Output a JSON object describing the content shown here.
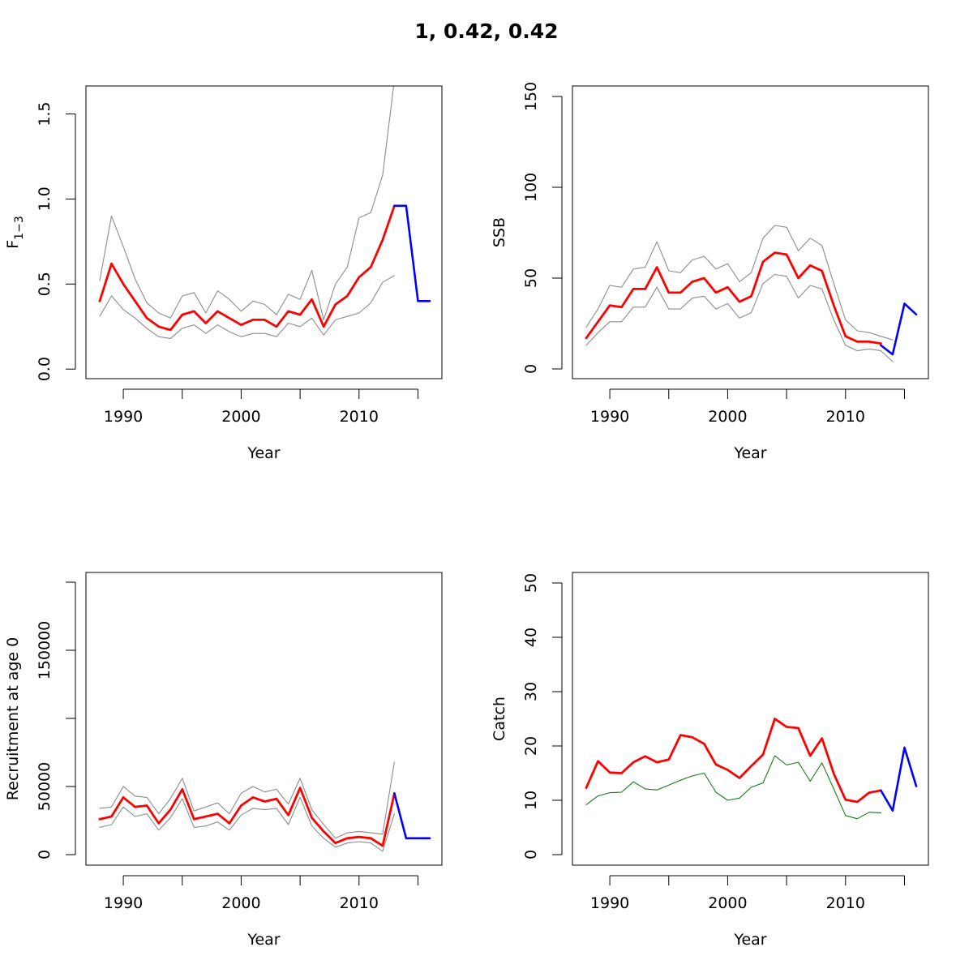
{
  "title": "1, 0.42, 0.42",
  "colors": {
    "estimate": "#ff0000",
    "projection": "#0000ff",
    "ci": "#8c8c8c",
    "observed": "#1a7a1a"
  },
  "chart_data": [
    {
      "type": "line",
      "panel": "top-left",
      "xlabel": "Year",
      "ylabel": "F",
      "ylabel_sub": "1−3",
      "xlim": [
        1988,
        2016
      ],
      "ylim": [
        0,
        1.6
      ],
      "xticks": [
        1990,
        1995,
        2000,
        2005,
        2010,
        2015
      ],
      "xtick_labels": [
        "1990",
        "",
        "2000",
        "",
        "2010",
        ""
      ],
      "yticks": [
        0,
        0.5,
        1.0,
        1.5
      ],
      "ytick_labels": [
        "0.0",
        "0.5",
        "1.0",
        "1.5"
      ],
      "series": [
        {
          "role": "upper",
          "x": [
            1988,
            1989,
            1990,
            1991,
            1992,
            1993,
            1994,
            1995,
            1996,
            1997,
            1998,
            1999,
            2000,
            2001,
            2002,
            2003,
            2004,
            2005,
            2006,
            2007,
            2008,
            2009,
            2010,
            2011,
            2012,
            2013
          ],
          "values": [
            0.52,
            0.9,
            0.72,
            0.53,
            0.39,
            0.33,
            0.3,
            0.43,
            0.45,
            0.33,
            0.46,
            0.41,
            0.34,
            0.4,
            0.38,
            0.32,
            0.44,
            0.41,
            0.58,
            0.29,
            0.5,
            0.6,
            0.89,
            0.92,
            1.14,
            1.7
          ]
        },
        {
          "role": "estimate",
          "x": [
            1988,
            1989,
            1990,
            1991,
            1992,
            1993,
            1994,
            1995,
            1996,
            1997,
            1998,
            1999,
            2000,
            2001,
            2002,
            2003,
            2004,
            2005,
            2006,
            2007,
            2008,
            2009,
            2010,
            2011,
            2012,
            2013
          ],
          "values": [
            0.4,
            0.62,
            0.5,
            0.4,
            0.3,
            0.25,
            0.23,
            0.32,
            0.34,
            0.27,
            0.34,
            0.3,
            0.26,
            0.29,
            0.29,
            0.25,
            0.34,
            0.32,
            0.41,
            0.25,
            0.38,
            0.43,
            0.54,
            0.6,
            0.76,
            0.96
          ]
        },
        {
          "role": "lower",
          "x": [
            1988,
            1989,
            1990,
            1991,
            1992,
            1993,
            1994,
            1995,
            1996,
            1997,
            1998,
            1999,
            2000,
            2001,
            2002,
            2003,
            2004,
            2005,
            2006,
            2007,
            2008,
            2009,
            2010,
            2011,
            2012,
            2013
          ],
          "values": [
            0.31,
            0.43,
            0.35,
            0.3,
            0.24,
            0.19,
            0.18,
            0.24,
            0.26,
            0.21,
            0.26,
            0.22,
            0.19,
            0.21,
            0.21,
            0.19,
            0.27,
            0.25,
            0.3,
            0.2,
            0.29,
            0.31,
            0.33,
            0.39,
            0.51,
            0.55
          ]
        },
        {
          "role": "projection",
          "x": [
            2013,
            2014,
            2015,
            2016
          ],
          "values": [
            0.96,
            0.96,
            0.4,
            0.4
          ]
        }
      ]
    },
    {
      "type": "line",
      "panel": "top-right",
      "xlabel": "Year",
      "ylabel": "SSB",
      "xlim": [
        1988,
        2016
      ],
      "ylim": [
        0,
        150
      ],
      "xticks": [
        1990,
        1995,
        2000,
        2005,
        2010,
        2015
      ],
      "xtick_labels": [
        "1990",
        "",
        "2000",
        "",
        "2010",
        ""
      ],
      "yticks": [
        0,
        50,
        100,
        150
      ],
      "ytick_labels": [
        "0",
        "50",
        "100",
        "150"
      ],
      "series": [
        {
          "role": "upper",
          "x": [
            1988,
            1989,
            1990,
            1991,
            1992,
            1993,
            1994,
            1995,
            1996,
            1997,
            1998,
            1999,
            2000,
            2001,
            2002,
            2003,
            2004,
            2005,
            2006,
            2007,
            2008,
            2009,
            2010,
            2011,
            2012,
            2013,
            2014
          ],
          "values": [
            23,
            33,
            46,
            45,
            55,
            56,
            70,
            54,
            53,
            60,
            62,
            55,
            58,
            48,
            53,
            72,
            79,
            78,
            65,
            72,
            68,
            47,
            27,
            21,
            20,
            18,
            16
          ]
        },
        {
          "role": "estimate",
          "x": [
            1988,
            1989,
            1990,
            1991,
            1992,
            1993,
            1994,
            1995,
            1996,
            1997,
            1998,
            1999,
            2000,
            2001,
            2002,
            2003,
            2004,
            2005,
            2006,
            2007,
            2008,
            2009,
            2010,
            2011,
            2012,
            2013
          ],
          "values": [
            17,
            26,
            35,
            34,
            44,
            44,
            56,
            42,
            42,
            48,
            50,
            42,
            45,
            37,
            40,
            59,
            64,
            63,
            50,
            57,
            54,
            35,
            18,
            15,
            15,
            14
          ]
        },
        {
          "role": "lower",
          "x": [
            1988,
            1989,
            1990,
            1991,
            1992,
            1993,
            1994,
            1995,
            1996,
            1997,
            1998,
            1999,
            2000,
            2001,
            2002,
            2003,
            2004,
            2005,
            2006,
            2007,
            2008,
            2009,
            2010,
            2011,
            2012,
            2013,
            2014
          ],
          "values": [
            13,
            20,
            26,
            26,
            34,
            34,
            45,
            33,
            33,
            39,
            40,
            33,
            36,
            28,
            31,
            47,
            52,
            51,
            39,
            46,
            44,
            27,
            13,
            10,
            11,
            10,
            4
          ]
        },
        {
          "role": "projection",
          "x": [
            2013,
            2014,
            2015,
            2016
          ],
          "values": [
            13,
            8,
            36,
            30
          ]
        }
      ]
    },
    {
      "type": "line",
      "panel": "bottom-left",
      "xlabel": "Year",
      "ylabel": "Recruitment at age 0",
      "xlim": [
        1988,
        2016
      ],
      "ylim": [
        0,
        200000
      ],
      "xticks": [
        1990,
        1995,
        2000,
        2005,
        2010,
        2015
      ],
      "xtick_labels": [
        "1990",
        "",
        "2000",
        "",
        "2010",
        ""
      ],
      "yticks": [
        0,
        50000,
        100000,
        150000,
        200000
      ],
      "ytick_labels": [
        "0",
        "50000",
        "",
        "150000",
        ""
      ],
      "series": [
        {
          "role": "upper",
          "x": [
            1988,
            1989,
            1990,
            1991,
            1992,
            1993,
            1994,
            1995,
            1996,
            1997,
            1998,
            1999,
            2000,
            2001,
            2002,
            2003,
            2004,
            2005,
            2006,
            2007,
            2008,
            2009,
            2010,
            2011,
            2012,
            2013
          ],
          "values": [
            34000,
            35000,
            50000,
            43000,
            42000,
            30000,
            41000,
            56000,
            32000,
            35000,
            38000,
            30000,
            45000,
            50000,
            46000,
            48000,
            37000,
            56000,
            33000,
            22000,
            12000,
            16000,
            17000,
            16000,
            15000,
            68000
          ]
        },
        {
          "role": "estimate",
          "x": [
            1988,
            1989,
            1990,
            1991,
            1992,
            1993,
            1994,
            1995,
            1996,
            1997,
            1998,
            1999,
            2000,
            2001,
            2002,
            2003,
            2004,
            2005,
            2006,
            2007,
            2008,
            2009,
            2010,
            2011,
            2012,
            2013
          ],
          "values": [
            26000,
            28000,
            42000,
            35000,
            36000,
            23000,
            33000,
            48000,
            26000,
            28000,
            30000,
            23000,
            36000,
            42000,
            39000,
            41000,
            29000,
            49000,
            27000,
            17000,
            8500,
            12000,
            13000,
            12000,
            6500,
            45000
          ]
        },
        {
          "role": "lower",
          "x": [
            1988,
            1989,
            1990,
            1991,
            1992,
            1993,
            1994,
            1995,
            1996,
            1997,
            1998,
            1999,
            2000,
            2001,
            2002,
            2003,
            2004,
            2005,
            2006,
            2007,
            2008,
            2009,
            2010,
            2011,
            2012,
            2013
          ],
          "values": [
            20000,
            22000,
            35000,
            28000,
            30000,
            18000,
            27000,
            41000,
            20000,
            21000,
            24000,
            18000,
            29000,
            34000,
            33000,
            34000,
            22000,
            42000,
            21000,
            12000,
            5500,
            8500,
            9500,
            8500,
            2500,
            30000
          ]
        },
        {
          "role": "projection",
          "x": [
            2013,
            2014,
            2015,
            2016
          ],
          "values": [
            45000,
            12000,
            12000,
            12000
          ]
        }
      ]
    },
    {
      "type": "line",
      "panel": "bottom-right",
      "xlabel": "Year",
      "ylabel": "Catch",
      "xlim": [
        1988,
        2016
      ],
      "ylim": [
        0,
        50
      ],
      "xticks": [
        1990,
        1995,
        2000,
        2005,
        2010,
        2015
      ],
      "xtick_labels": [
        "1990",
        "",
        "2000",
        "",
        "2010",
        ""
      ],
      "yticks": [
        0,
        10,
        20,
        30,
        40,
        50
      ],
      "ytick_labels": [
        "0",
        "10",
        "20",
        "30",
        "40",
        "50"
      ],
      "series": [
        {
          "role": "observed",
          "x": [
            1988,
            1989,
            1990,
            1991,
            1992,
            1993,
            1994,
            1995,
            1996,
            1997,
            1998,
            1999,
            2000,
            2001,
            2002,
            2003,
            2004,
            2005,
            2006,
            2007,
            2008,
            2009,
            2010,
            2011,
            2012,
            2013
          ],
          "values": [
            9.2,
            10.8,
            11.4,
            11.5,
            13.4,
            12.1,
            11.9,
            12.8,
            13.7,
            14.5,
            15.0,
            11.5,
            10.0,
            10.4,
            12.4,
            13.2,
            18.2,
            16.5,
            17.0,
            13.5,
            16.9,
            12.1,
            7.2,
            6.6,
            7.8,
            7.7
          ]
        },
        {
          "role": "estimate",
          "x": [
            1988,
            1989,
            1990,
            1991,
            1992,
            1993,
            1994,
            1995,
            1996,
            1997,
            1998,
            1999,
            2000,
            2001,
            2002,
            2003,
            2004,
            2005,
            2006,
            2007,
            2008,
            2009,
            2010,
            2011,
            2012,
            2013
          ],
          "values": [
            12.3,
            17.2,
            15.1,
            15.0,
            17.0,
            18.1,
            17.0,
            17.5,
            22.0,
            21.6,
            20.4,
            16.6,
            15.6,
            14.1,
            16.3,
            18.4,
            25.0,
            23.5,
            23.3,
            18.2,
            21.4,
            14.9,
            10.1,
            9.7,
            11.4,
            11.8
          ]
        },
        {
          "role": "projection",
          "x": [
            2013,
            2014,
            2015,
            2016
          ],
          "values": [
            11.8,
            8.1,
            19.7,
            12.6
          ]
        }
      ]
    }
  ]
}
